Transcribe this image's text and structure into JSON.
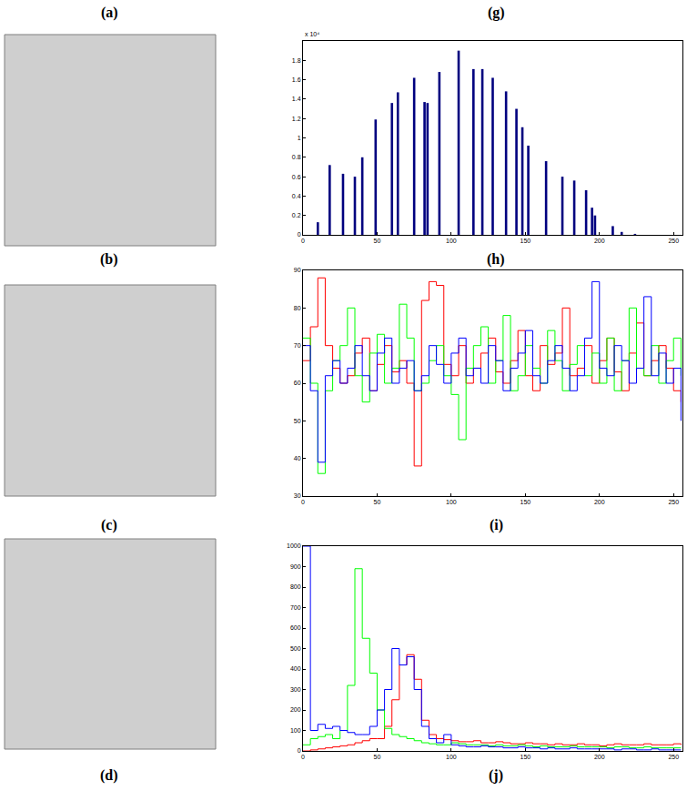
{
  "labels": [
    "(a)",
    "(g)",
    "(b)",
    "(h)",
    "(c)",
    "(i)",
    "(d)",
    "(j)"
  ],
  "chart_data": [
    {
      "type": "bar",
      "color": "#00007f",
      "x": [
        10,
        18,
        27,
        35,
        40,
        49,
        60,
        64,
        75,
        82,
        84,
        92,
        105,
        115,
        121,
        128,
        137,
        144,
        148,
        152,
        164,
        175,
        183,
        191,
        195,
        197,
        209,
        215,
        224
      ],
      "values": [
        0.13,
        0.72,
        0.63,
        0.6,
        0.8,
        1.19,
        1.36,
        1.47,
        1.62,
        1.37,
        1.36,
        1.68,
        1.9,
        1.71,
        1.71,
        1.62,
        1.48,
        1.3,
        1.11,
        0.92,
        0.76,
        0.6,
        0.56,
        0.46,
        0.28,
        0.2,
        0.09,
        0.03,
        0.01
      ],
      "annotations": [
        "x 10⁴"
      ],
      "xlim": [
        0,
        256
      ],
      "xticks": [
        0,
        50,
        100,
        150,
        200,
        250
      ],
      "ylim": [
        0,
        2
      ],
      "yticks": [
        0,
        0.2,
        0.4,
        0.6,
        0.8,
        1,
        1.2,
        1.4,
        1.6,
        1.8
      ],
      "grid": false
    },
    {
      "type": "line",
      "line_style": "steps",
      "x": [
        0,
        5,
        10,
        15,
        20,
        25,
        30,
        35,
        40,
        45,
        50,
        55,
        60,
        65,
        70,
        75,
        80,
        85,
        90,
        95,
        100,
        105,
        110,
        115,
        120,
        125,
        130,
        135,
        140,
        145,
        150,
        155,
        160,
        165,
        170,
        175,
        180,
        185,
        190,
        195,
        200,
        205,
        210,
        215,
        220,
        225,
        230,
        235,
        240,
        245,
        250,
        255
      ],
      "series": [
        {
          "color": "#ff0000",
          "values": [
            66,
            75,
            88,
            70,
            64,
            60,
            62,
            68,
            72,
            58,
            65,
            70,
            63,
            66,
            60,
            38,
            82,
            87,
            86,
            65,
            62,
            70,
            60,
            64,
            68,
            72,
            63,
            60,
            66,
            74,
            62,
            58,
            70,
            65,
            68,
            80,
            62,
            64,
            70,
            60,
            66,
            72,
            63,
            58,
            68,
            76,
            62,
            66,
            70,
            64,
            58,
            55
          ]
        },
        {
          "color": "#00ff00",
          "values": [
            72,
            60,
            36,
            58,
            66,
            70,
            80,
            62,
            55,
            68,
            73,
            60,
            64,
            81,
            72,
            58,
            60,
            66,
            70,
            62,
            57,
            45,
            64,
            70,
            75,
            60,
            66,
            78,
            58,
            62,
            70,
            64,
            60,
            74,
            66,
            58,
            65,
            70,
            62,
            68,
            60,
            72,
            58,
            66,
            80,
            64,
            62,
            70,
            60,
            66,
            72,
            62
          ]
        },
        {
          "color": "#0000ff",
          "values": [
            70,
            58,
            39,
            62,
            66,
            60,
            64,
            70,
            62,
            58,
            68,
            72,
            60,
            64,
            66,
            58,
            62,
            70,
            65,
            60,
            68,
            72,
            62,
            64,
            60,
            70,
            66,
            58,
            64,
            68,
            74,
            62,
            60,
            66,
            70,
            64,
            58,
            62,
            72,
            87,
            64,
            62,
            70,
            66,
            60,
            64,
            83,
            62,
            68,
            60,
            64,
            50
          ]
        }
      ],
      "xlim": [
        0,
        256
      ],
      "xticks": [
        0,
        50,
        100,
        150,
        200,
        250
      ],
      "ylim": [
        30,
        90
      ],
      "yticks": [
        30,
        40,
        50,
        60,
        70,
        80,
        90
      ],
      "grid": false
    },
    {
      "type": "line",
      "line_style": "steps",
      "x": [
        0,
        5,
        10,
        15,
        20,
        25,
        30,
        35,
        40,
        45,
        50,
        55,
        60,
        65,
        70,
        75,
        80,
        85,
        90,
        95,
        100,
        105,
        110,
        115,
        120,
        125,
        130,
        135,
        140,
        145,
        150,
        155,
        160,
        165,
        170,
        175,
        180,
        185,
        190,
        195,
        200,
        205,
        210,
        215,
        220,
        225,
        230,
        235,
        240,
        245,
        250,
        255
      ],
      "series": [
        {
          "color": "#ff0000",
          "values": [
            0,
            5,
            10,
            15,
            20,
            25,
            30,
            40,
            50,
            60,
            60,
            120,
            250,
            420,
            470,
            350,
            150,
            80,
            60,
            55,
            50,
            45,
            45,
            50,
            40,
            40,
            45,
            40,
            35,
            35,
            40,
            35,
            35,
            30,
            35,
            30,
            30,
            35,
            30,
            30,
            25,
            30,
            35,
            30,
            30,
            30,
            35,
            30,
            30,
            30,
            35,
            30
          ]
        },
        {
          "color": "#00ff00",
          "values": [
            30,
            60,
            70,
            80,
            60,
            100,
            320,
            890,
            550,
            380,
            200,
            110,
            80,
            70,
            60,
            50,
            40,
            35,
            30,
            30,
            40,
            35,
            30,
            30,
            30,
            25,
            30,
            25,
            25,
            30,
            25,
            20,
            25,
            20,
            20,
            20,
            25,
            20,
            20,
            20,
            20,
            15,
            20,
            20,
            15,
            15,
            20,
            15,
            15,
            15,
            15,
            15
          ]
        },
        {
          "color": "#0000ff",
          "values": [
            1000,
            100,
            130,
            110,
            120,
            100,
            90,
            80,
            80,
            120,
            200,
            300,
            500,
            420,
            460,
            300,
            120,
            60,
            40,
            80,
            30,
            25,
            20,
            20,
            25,
            20,
            20,
            15,
            15,
            20,
            15,
            15,
            10,
            15,
            10,
            10,
            15,
            10,
            10,
            10,
            10,
            10,
            5,
            10,
            10,
            5,
            5,
            10,
            5,
            5,
            5,
            5
          ]
        }
      ],
      "xlim": [
        0,
        256
      ],
      "xticks": [
        0,
        50,
        100,
        150,
        200,
        250
      ],
      "ylim": [
        0,
        1000
      ],
      "yticks": [
        0,
        100,
        200,
        300,
        400,
        500,
        600,
        700,
        800,
        900,
        1000
      ],
      "grid": false
    }
  ]
}
